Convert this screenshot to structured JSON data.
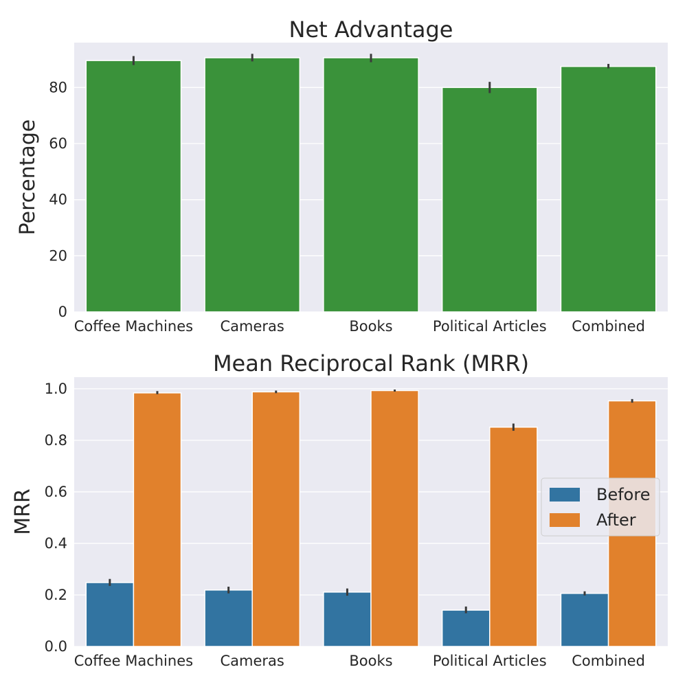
{
  "chart_data": [
    {
      "type": "bar",
      "title": "Net Advantage",
      "xlabel": "",
      "ylabel": "Percentage",
      "categories": [
        "Coffee Machines",
        "Cameras",
        "Books",
        "Political Articles",
        "Combined"
      ],
      "ylim": [
        0,
        96
      ],
      "yticks": [
        0,
        20,
        40,
        60,
        80
      ],
      "ytick_labels": [
        "0",
        "20",
        "40",
        "60",
        "80"
      ],
      "grid": true,
      "series": [
        {
          "values": [
            89.6,
            90.6,
            90.6,
            80.0,
            87.5
          ],
          "error": [
            [
              88.0,
              91.2
            ],
            [
              89.3,
              92.0
            ],
            [
              89.0,
              92.0
            ],
            [
              78.0,
              82.0
            ],
            [
              86.8,
              88.4
            ]
          ],
          "color": "#3a923a"
        }
      ]
    },
    {
      "type": "bar",
      "title": "Mean Reciprocal Rank (MRR)",
      "xlabel": "",
      "ylabel": "MRR",
      "categories": [
        "Coffee Machines",
        "Cameras",
        "Books",
        "Political Articles",
        "Combined"
      ],
      "ylim": [
        0,
        1.045
      ],
      "yticks": [
        0.0,
        0.2,
        0.4,
        0.6,
        0.8,
        1.0
      ],
      "ytick_labels": [
        "0.0",
        "0.2",
        "0.4",
        "0.6",
        "0.8",
        "1.0"
      ],
      "grid": true,
      "legend_position": "center-right",
      "series": [
        {
          "name": "Before",
          "values": [
            0.248,
            0.219,
            0.211,
            0.141,
            0.206
          ],
          "error": [
            [
              0.235,
              0.262
            ],
            [
              0.206,
              0.232
            ],
            [
              0.197,
              0.225
            ],
            [
              0.129,
              0.155
            ],
            [
              0.198,
              0.214
            ]
          ],
          "color": "#3274a1"
        },
        {
          "name": "After",
          "values": [
            0.984,
            0.988,
            0.993,
            0.851,
            0.953
          ],
          "error": [
            [
              0.979,
              0.991
            ],
            [
              0.983,
              0.993
            ],
            [
              0.989,
              0.997
            ],
            [
              0.837,
              0.865
            ],
            [
              0.946,
              0.96
            ]
          ],
          "color": "#e1812c"
        }
      ]
    }
  ]
}
